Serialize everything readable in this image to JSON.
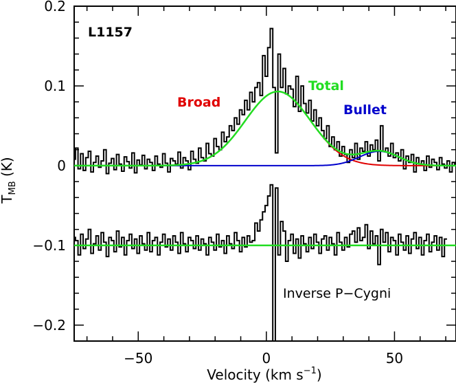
{
  "chart_data": {
    "type": "line",
    "title": "",
    "xlabel": "Velocity (km s",
    "xlabel_sup": "−1",
    "xlabel_close": ")",
    "ylabel": "T",
    "ylabel_sub": "MB",
    "ylabel_unit": " (K)",
    "xlim": [
      -75,
      74
    ],
    "ylim": [
      -0.22,
      0.2
    ],
    "xticks": [
      -50,
      0,
      50
    ],
    "xtick_labels": [
      "−50",
      "0",
      "50"
    ],
    "yticks": [
      -0.2,
      -0.1,
      0,
      0.1,
      0.2
    ],
    "ytick_labels": [
      "−0.2",
      "−0.1",
      "0",
      "0.1",
      "0.2"
    ],
    "annotations": {
      "source": "L1157",
      "broad": "Broad",
      "total": "Total",
      "bullet": "Bullet",
      "residual": "Inverse P−Cygni"
    },
    "colors": {
      "spectrum": "#000000",
      "broad": "#e00000",
      "bullet": "#0000cc",
      "total": "#22dd22"
    },
    "fit_components": {
      "broad": {
        "amplitude": 0.093,
        "center": 4.5,
        "fwhm": 30.0
      },
      "bullet": {
        "amplitude": 0.018,
        "center": 44.0,
        "fwhm": 18.0
      }
    },
    "residual_offset": -0.1,
    "spectrum": {
      "channel_width_km_s": 1.0,
      "x_start": -75,
      "y": [
        0.008,
        0.022,
        -0.004,
        0.015,
        -0.006,
        0.01,
        0.018,
        -0.008,
        0.004,
        0.012,
        -0.002,
        0.006,
        0.02,
        -0.01,
        0.003,
        0.009,
        -0.005,
        0.014,
        0.002,
        -0.007,
        0.011,
        0.005,
        -0.003,
        0.016,
        -0.009,
        0.007,
        0.001,
        0.013,
        -0.004,
        0.008,
        0.004,
        -0.006,
        0.012,
        0.002,
        -0.002,
        0.015,
        0.003,
        -0.008,
        0.009,
        0.006,
        0.002,
        0.017,
        -0.003,
        0.01,
        0.006,
        -0.005,
        0.018,
        0.008,
        0.003,
        0.022,
        0.01,
        0.006,
        0.028,
        0.015,
        0.012,
        0.034,
        0.024,
        0.02,
        0.042,
        0.03,
        0.036,
        0.05,
        0.044,
        0.06,
        0.052,
        0.07,
        0.064,
        0.082,
        0.07,
        0.092,
        0.08,
        0.098,
        0.104,
        0.088,
        0.138,
        0.112,
        0.148,
        0.172,
        0.098,
        0.016,
        0.14,
        0.098,
        0.122,
        0.09,
        0.1,
        0.096,
        0.074,
        0.112,
        0.068,
        0.1,
        0.078,
        0.066,
        0.082,
        0.056,
        0.07,
        0.05,
        0.06,
        0.044,
        0.034,
        0.05,
        0.024,
        0.036,
        0.02,
        0.03,
        0.012,
        0.024,
        0.014,
        0.004,
        0.02,
        0.01,
        0.028,
        0.008,
        0.022,
        0.018,
        0.03,
        0.012,
        0.026,
        0.02,
        0.032,
        0.006,
        0.05,
        0.018,
        0.022,
        0.012,
        0.028,
        0.01,
        0.016,
        0.006,
        0.02,
        -0.004,
        0.012,
        0.004,
        0.014,
        -0.008,
        0.01,
        0.002,
        0.006,
        -0.006,
        0.012,
        -0.002,
        0.008,
        0.004,
        -0.005,
        0.01,
        0.002,
        -0.003,
        0.006,
        -0.008,
        0.004,
        0.001
      ]
    },
    "residual": {
      "y": [
        0.01,
        0.006,
        -0.012,
        0.014,
        -0.004,
        0.008,
        0.02,
        -0.01,
        0.002,
        0.012,
        -0.006,
        0.016,
        0.004,
        -0.014,
        0.01,
        0.006,
        -0.008,
        0.018,
        -0.002,
        0.01,
        -0.012,
        0.006,
        0.014,
        -0.004,
        0.008,
        -0.01,
        0.012,
        0.002,
        -0.006,
        0.016,
        -0.008,
        0.006,
        0.01,
        -0.012,
        0.004,
        0.014,
        -0.002,
        0.008,
        -0.006,
        0.012,
        0.004,
        -0.01,
        0.016,
        0.002,
        -0.008,
        0.01,
        0.006,
        -0.004,
        0.012,
        -0.006,
        0.008,
        0.002,
        -0.012,
        0.01,
        0.004,
        -0.006,
        0.014,
        -0.002,
        0.006,
        -0.01,
        0.012,
        0.002,
        -0.004,
        0.016,
        0.006,
        -0.008,
        0.01,
        -0.002,
        0.012,
        0.004,
        0.006,
        0.028,
        0.018,
        0.032,
        0.042,
        0.05,
        0.062,
        0.076,
        -0.12,
        0.072,
        -0.012,
        0.03,
        0.018,
        -0.02,
        0.006,
        0.014,
        -0.01,
        0.008,
        -0.016,
        0.012,
        0.002,
        -0.008,
        0.01,
        -0.004,
        0.014,
        0.004,
        -0.01,
        0.008,
        0.012,
        -0.006,
        0.01,
        0.002,
        -0.012,
        0.016,
        0.004,
        -0.006,
        0.01,
        -0.002,
        0.014,
        0.018,
        0.004,
        0.022,
        0.006,
        0.01,
        0.026,
        -0.004,
        0.018,
        0.002,
        0.012,
        -0.024,
        0.02,
        0.004,
        0.016,
        -0.008,
        0.01,
        0.006,
        -0.012,
        0.014,
        0.004,
        -0.006,
        0.012,
        -0.01,
        0.008,
        0.016,
        -0.004,
        0.01,
        -0.012,
        0.006,
        0.014,
        -0.008,
        0.004,
        0.012,
        -0.006,
        0.01,
        -0.014,
        0.008
      ]
    }
  }
}
